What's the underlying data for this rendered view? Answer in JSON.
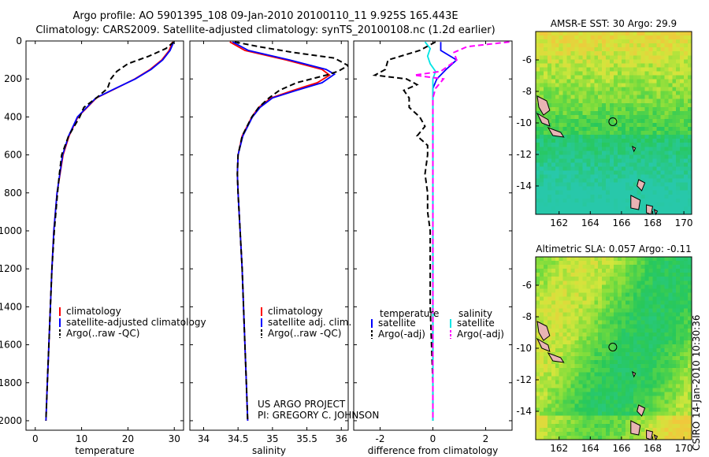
{
  "title": {
    "line1": "Argo profile: AO 5901395_108 09-Jan-2010 20100110_11 9.925S 165.443E",
    "line2": "Climatology: CARS2009. Satellite-adjusted climatology: synTS_20100108.nc (1.2d earlier)"
  },
  "credit": {
    "project": "US ARGO PROJECT",
    "pi": "PI: GREGORY C. JOHNSON",
    "stamp": "CSIRO 14-Jan-2010 10:30:36"
  },
  "colors": {
    "climatology": "#ff0000",
    "satellite": "#0000ff",
    "argo": "#000000",
    "sal_satellite": "#00e5e5",
    "sal_argo": "#ff00ff",
    "land": "#e8b4b4"
  },
  "chart_data": [
    {
      "type": "line",
      "id": "temperature",
      "xlabel": "temperature",
      "ylabel": "",
      "xlim": [
        -2,
        32
      ],
      "ylim": [
        2050,
        0
      ],
      "xticks": [
        0,
        10,
        20,
        30
      ],
      "yticks": [
        0,
        200,
        400,
        600,
        800,
        1000,
        1200,
        1400,
        1600,
        1800,
        2000
      ],
      "legend": [
        "climatology",
        "satellite-adjusted climatology",
        "Argo(..raw -QC)"
      ],
      "series": [
        {
          "name": "climatology",
          "color": "#ff0000",
          "dash": "solid",
          "depth": [
            5,
            50,
            100,
            150,
            200,
            250,
            300,
            400,
            500,
            600,
            800,
            1000,
            1200,
            1500,
            1800,
            2000
          ],
          "values": [
            29.6,
            28.9,
            27.3,
            24.8,
            21.5,
            17.4,
            13.2,
            9.2,
            7.3,
            6.0,
            4.7,
            4.0,
            3.6,
            3.1,
            2.6,
            2.3
          ]
        },
        {
          "name": "satellite-adjusted climatology",
          "color": "#0000ff",
          "dash": "solid",
          "depth": [
            5,
            50,
            100,
            150,
            200,
            250,
            300,
            400,
            500,
            600,
            800,
            1000,
            1200,
            1500,
            1800,
            2000
          ],
          "values": [
            29.9,
            29.1,
            27.5,
            25.0,
            21.6,
            17.3,
            13.1,
            9.1,
            7.2,
            5.9,
            4.7,
            4.0,
            3.6,
            3.1,
            2.6,
            2.3
          ]
        },
        {
          "name": "Argo(..raw -QC)",
          "color": "#000000",
          "dash": "dash",
          "depth": [
            5,
            40,
            80,
            120,
            160,
            200,
            250,
            300,
            350,
            400,
            450,
            500,
            600,
            700,
            800,
            1000,
            1200,
            1500,
            1800,
            2000
          ],
          "values": [
            29.9,
            28.2,
            24.5,
            20.0,
            17.6,
            16.3,
            15.6,
            13.2,
            10.5,
            9.6,
            8.4,
            7.2,
            5.7,
            5.2,
            4.8,
            4.1,
            3.6,
            3.1,
            2.6,
            2.3
          ]
        }
      ]
    },
    {
      "type": "line",
      "id": "salinity",
      "xlabel": "salinity",
      "ylabel": "",
      "xlim": [
        33.8,
        36.1
      ],
      "ylim": [
        2050,
        0
      ],
      "xticks": [
        34,
        34.5,
        35,
        35.5,
        36
      ],
      "yticks": [
        0,
        200,
        400,
        600,
        800,
        1000,
        1200,
        1400,
        1600,
        1800,
        2000
      ],
      "legend": [
        "climatology",
        "satellite adj. clim.",
        "Argo(..raw -QC)"
      ],
      "series": [
        {
          "name": "climatology",
          "color": "#ff0000",
          "dash": "solid",
          "depth": [
            5,
            50,
            100,
            150,
            180,
            220,
            260,
            300,
            350,
            400,
            500,
            600,
            700,
            800,
            1000,
            1200,
            1500,
            1800,
            2000
          ],
          "values": [
            34.38,
            34.6,
            35.2,
            35.72,
            35.83,
            35.65,
            35.3,
            34.98,
            34.8,
            34.7,
            34.56,
            34.5,
            34.49,
            34.5,
            34.53,
            34.56,
            34.59,
            34.62,
            34.64
          ]
        },
        {
          "name": "satellite adj. clim.",
          "color": "#0000ff",
          "dash": "solid",
          "depth": [
            5,
            50,
            100,
            150,
            175,
            220,
            260,
            300,
            350,
            400,
            500,
            600,
            700,
            800,
            1000,
            1200,
            1500,
            1800,
            2000
          ],
          "values": [
            34.42,
            34.65,
            35.25,
            35.78,
            35.9,
            35.72,
            35.35,
            35.0,
            34.82,
            34.71,
            34.57,
            34.5,
            34.49,
            34.5,
            34.53,
            34.56,
            34.59,
            34.62,
            34.64
          ]
        },
        {
          "name": "Argo(..raw -QC)",
          "color": "#000000",
          "dash": "dash",
          "depth": [
            5,
            30,
            60,
            90,
            130,
            160,
            180,
            220,
            260,
            300,
            350,
            400,
            500,
            600,
            700,
            800,
            1000,
            1200,
            1500,
            1800,
            2000
          ],
          "values": [
            34.45,
            34.8,
            35.3,
            35.9,
            36.1,
            35.95,
            35.78,
            35.35,
            35.1,
            34.95,
            34.8,
            34.7,
            34.56,
            34.5,
            34.49,
            34.5,
            34.53,
            34.56,
            34.59,
            34.62,
            34.64
          ]
        }
      ]
    },
    {
      "type": "line",
      "id": "difference",
      "xlabel": "difference from climatology",
      "ylabel": "",
      "xlim": [
        -3,
        3
      ],
      "ylim": [
        2050,
        0
      ],
      "xticks": [
        -2,
        0,
        2
      ],
      "yticks": [
        0,
        200,
        400,
        600,
        800,
        1000,
        1200,
        1400,
        1600,
        1800,
        2000
      ],
      "legend_headers": [
        "temperature",
        "salinity"
      ],
      "legend": [
        "satellite",
        "Argo(-adj)",
        "satellite",
        "Argo(-adj)"
      ],
      "series": [
        {
          "name": "temperature satellite",
          "color": "#0000ff",
          "dash": "solid",
          "depth": [
            5,
            50,
            100,
            150,
            200,
            250,
            300,
            400,
            500,
            700,
            1000,
            1500,
            2000
          ],
          "values": [
            0.3,
            0.3,
            0.9,
            0.5,
            0.15,
            0.0,
            0.0,
            0.0,
            0.0,
            0.0,
            0.0,
            0.0,
            0.0
          ]
        },
        {
          "name": "temperature Argo(-adj)",
          "color": "#000000",
          "dash": "dash",
          "depth": [
            5,
            50,
            100,
            150,
            180,
            200,
            230,
            260,
            300,
            350,
            400,
            450,
            500,
            550,
            600,
            700,
            800,
            900,
            1000,
            1100,
            1200,
            1300,
            1400,
            1600,
            1800,
            2000
          ],
          "values": [
            0.1,
            -0.5,
            -1.7,
            -1.8,
            -2.2,
            -1.0,
            -0.6,
            -1.1,
            -0.9,
            -0.9,
            -0.5,
            -0.3,
            -0.6,
            -0.2,
            -0.2,
            -0.3,
            -0.2,
            -0.2,
            -0.1,
            -0.1,
            -0.1,
            -0.1,
            -0.1,
            -0.05,
            0.0,
            0.0
          ]
        },
        {
          "name": "salinity satellite",
          "color": "#00e5e5",
          "dash": "solid",
          "depth": [
            5,
            40,
            80,
            120,
            160,
            200,
            300,
            400,
            600,
            1000,
            1500,
            2000
          ],
          "values": [
            -0.3,
            -0.1,
            -0.2,
            -0.1,
            0.1,
            0.0,
            0.0,
            0.0,
            0.0,
            0.0,
            0.0,
            0.0
          ]
        },
        {
          "name": "salinity Argo(-adj)",
          "color": "#ff00ff",
          "dash": "dash",
          "depth": [
            5,
            30,
            60,
            100,
            130,
            160,
            180,
            200,
            250,
            300,
            400,
            600,
            1000,
            1500,
            2000
          ],
          "values": [
            2.9,
            1.3,
            0.8,
            0.9,
            0.6,
            0.3,
            -0.7,
            0.4,
            0.1,
            0.0,
            0.0,
            0.0,
            0.0,
            0.0,
            0.0
          ]
        }
      ]
    },
    {
      "type": "heatmap",
      "id": "amsre_sst",
      "title": "AMSR-E SST: 30  Argo: 29.9",
      "xlim": [
        160.5,
        170.5
      ],
      "ylim": [
        -15.8,
        -4.2
      ],
      "xticks": [
        162,
        164,
        166,
        168,
        170
      ],
      "yticks": [
        -6,
        -8,
        -10,
        -12,
        -14
      ],
      "marker": {
        "lon": 165.443,
        "lat": -9.925
      }
    },
    {
      "type": "heatmap",
      "id": "altimetric_sla",
      "title": "Altimetric SLA: 0.057  Argo: -0.11",
      "xlim": [
        160.5,
        170.5
      ],
      "ylim": [
        -15.8,
        -4.2
      ],
      "xticks": [
        162,
        164,
        166,
        168,
        170
      ],
      "yticks": [
        -6,
        -8,
        -10,
        -12,
        -14
      ],
      "marker": {
        "lon": 165.443,
        "lat": -9.925
      }
    }
  ]
}
